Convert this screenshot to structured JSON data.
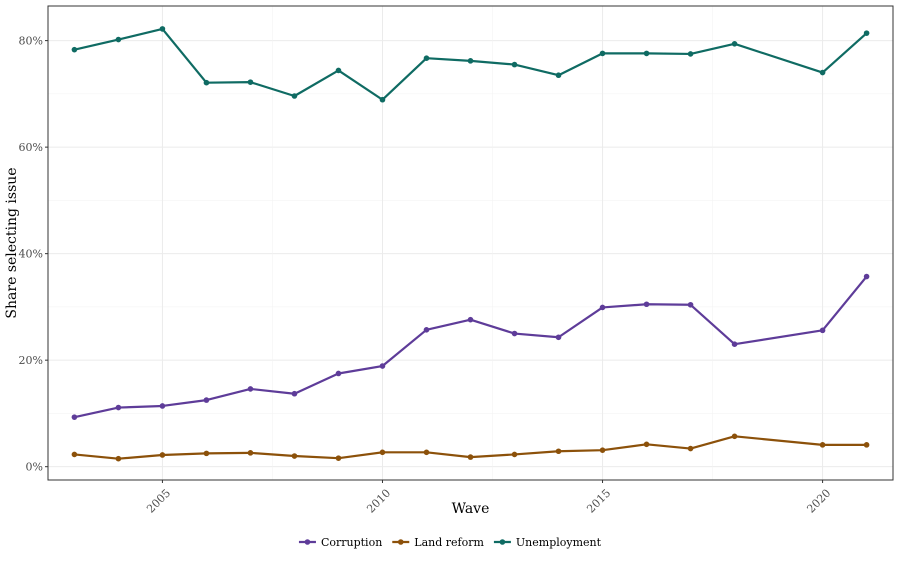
{
  "chart_data": {
    "type": "line",
    "xlabel": "Wave",
    "ylabel": "Share selecting issue",
    "xlim": [
      2002.4,
      2021.6
    ],
    "ylim": [
      -0.025,
      0.865
    ],
    "x_ticks": [
      2005,
      2010,
      2015,
      2020
    ],
    "x_tick_labels": [
      "2005",
      "2010",
      "2015",
      "2020"
    ],
    "y_ticks": [
      0,
      0.2,
      0.4,
      0.6,
      0.8
    ],
    "y_tick_labels": [
      "0%",
      "20%",
      "40%",
      "60%",
      "80%"
    ],
    "grid": true,
    "legend_position": "bottom",
    "series": [
      {
        "name": "Corruption",
        "color": "#5e3c99",
        "x": [
          2003,
          2004,
          2005,
          2006,
          2007,
          2008,
          2009,
          2010,
          2011,
          2012,
          2013,
          2014,
          2015,
          2016,
          2017,
          2018,
          2020,
          2021
        ],
        "values": [
          0.093,
          0.111,
          0.114,
          0.125,
          0.146,
          0.137,
          0.175,
          0.189,
          0.257,
          0.276,
          0.25,
          0.243,
          0.299,
          0.305,
          0.304,
          0.23,
          0.256,
          0.357
        ]
      },
      {
        "name": "Land reform",
        "color": "#8c510a",
        "x": [
          2003,
          2004,
          2005,
          2006,
          2007,
          2008,
          2009,
          2010,
          2011,
          2012,
          2013,
          2014,
          2015,
          2016,
          2017,
          2018,
          2020,
          2021
        ],
        "values": [
          0.023,
          0.015,
          0.022,
          0.025,
          0.026,
          0.02,
          0.016,
          0.027,
          0.027,
          0.018,
          0.023,
          0.029,
          0.031,
          0.042,
          0.034,
          0.057,
          0.041,
          0.041
        ]
      },
      {
        "name": "Unemployment",
        "color": "#0f6b63",
        "x": [
          2003,
          2004,
          2005,
          2006,
          2007,
          2008,
          2009,
          2010,
          2011,
          2012,
          2013,
          2014,
          2015,
          2016,
          2017,
          2018,
          2020,
          2021
        ],
        "values": [
          0.783,
          0.802,
          0.822,
          0.721,
          0.722,
          0.696,
          0.744,
          0.689,
          0.767,
          0.762,
          0.755,
          0.735,
          0.776,
          0.776,
          0.775,
          0.794,
          0.74,
          0.814
        ]
      }
    ]
  }
}
